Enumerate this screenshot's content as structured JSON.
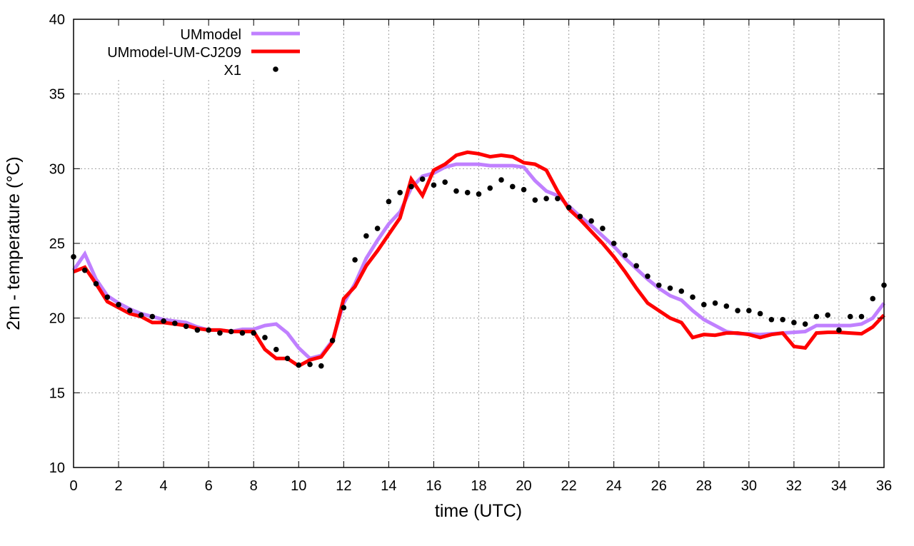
{
  "chart_data": {
    "type": "line",
    "title": "",
    "xlabel": "time (UTC)",
    "ylabel": "2m - temperature (°C)",
    "xlim": [
      0,
      36
    ],
    "ylim": [
      10,
      40
    ],
    "xticks": [
      0,
      2,
      4,
      6,
      8,
      10,
      12,
      14,
      16,
      18,
      20,
      22,
      24,
      26,
      28,
      30,
      32,
      34,
      36
    ],
    "yticks": [
      10,
      15,
      20,
      25,
      30,
      35,
      40
    ],
    "grid": true,
    "legend_position": "top-left",
    "x": [
      0,
      0.5,
      1,
      1.5,
      2,
      2.5,
      3,
      3.5,
      4,
      4.5,
      5,
      5.5,
      6,
      6.5,
      7,
      7.5,
      8,
      8.5,
      9,
      9.5,
      10,
      10.5,
      11,
      11.5,
      12,
      12.5,
      13,
      13.5,
      14,
      14.5,
      15,
      15.5,
      16,
      16.5,
      17,
      17.5,
      18,
      18.5,
      19,
      19.5,
      20,
      20.5,
      21,
      21.5,
      22,
      22.5,
      23,
      23.5,
      24,
      24.5,
      25,
      25.5,
      26,
      26.5,
      27,
      27.5,
      28,
      28.5,
      29,
      29.5,
      30,
      30.5,
      31,
      31.5,
      32,
      32.5,
      33,
      33.5,
      34,
      34.5,
      35,
      35.5,
      36
    ],
    "series": [
      {
        "name": "UMmodel",
        "style": "line",
        "color": "#c080ff",
        "values": [
          23.2,
          24.3,
          22.6,
          21.5,
          21.0,
          20.6,
          20.3,
          20.1,
          19.9,
          19.8,
          19.7,
          19.4,
          19.2,
          19.2,
          19.1,
          19.25,
          19.25,
          19.5,
          19.6,
          19.0,
          18.0,
          17.3,
          17.5,
          18.5,
          21.0,
          22.3,
          24.0,
          25.2,
          26.3,
          27.1,
          28.7,
          29.5,
          29.7,
          30.1,
          30.3,
          30.3,
          30.3,
          30.2,
          30.2,
          30.2,
          30.1,
          29.2,
          28.5,
          28.2,
          27.5,
          26.8,
          26.2,
          25.5,
          24.8,
          24.0,
          23.3,
          22.6,
          22.0,
          21.5,
          21.2,
          20.5,
          19.9,
          19.5,
          19.1,
          18.95,
          18.95,
          18.9,
          18.95,
          19.0,
          19.05,
          19.1,
          19.5,
          19.5,
          19.5,
          19.5,
          19.6,
          20.0,
          21.0
        ]
      },
      {
        "name": "UMmodel-UM-CJ209",
        "style": "line",
        "color": "#ff0000",
        "values": [
          23.1,
          23.4,
          22.3,
          21.1,
          20.7,
          20.3,
          20.1,
          19.7,
          19.7,
          19.6,
          19.5,
          19.3,
          19.2,
          19.2,
          19.1,
          19.1,
          19.1,
          17.9,
          17.3,
          17.3,
          16.8,
          17.2,
          17.4,
          18.4,
          21.3,
          22.1,
          23.5,
          24.5,
          25.6,
          26.7,
          29.3,
          28.2,
          29.9,
          30.3,
          30.9,
          31.1,
          31.0,
          30.8,
          30.9,
          30.8,
          30.4,
          30.3,
          29.9,
          28.5,
          27.3,
          26.6,
          25.8,
          25.0,
          24.1,
          23.1,
          22.0,
          21.0,
          20.5,
          20.0,
          19.7,
          18.7,
          18.9,
          18.85,
          19.0,
          19.0,
          18.9,
          18.7,
          18.9,
          19.0,
          18.1,
          18.0,
          19.0,
          19.05,
          19.05,
          19.0,
          18.95,
          19.4,
          20.2
        ]
      },
      {
        "name": "X1",
        "style": "points",
        "color": "#000000",
        "values": [
          24.1,
          23.2,
          22.3,
          21.4,
          20.9,
          20.5,
          20.2,
          20.1,
          19.8,
          19.65,
          19.45,
          19.2,
          19.2,
          19.0,
          19.1,
          19.0,
          19.0,
          18.7,
          17.9,
          17.3,
          16.85,
          16.9,
          16.8,
          18.5,
          20.7,
          23.9,
          25.5,
          26.0,
          27.8,
          28.4,
          28.8,
          29.3,
          28.9,
          29.1,
          28.5,
          28.4,
          28.3,
          28.7,
          29.25,
          28.8,
          28.6,
          27.9,
          28.0,
          28.0,
          27.4,
          26.8,
          26.5,
          26.0,
          25.0,
          24.2,
          23.5,
          22.8,
          22.2,
          22.0,
          21.8,
          21.4,
          20.9,
          21.0,
          20.8,
          20.5,
          20.5,
          20.3,
          19.9,
          19.9,
          19.7,
          19.6,
          20.1,
          20.2,
          19.2,
          20.1,
          20.1,
          21.3,
          22.2
        ]
      }
    ]
  }
}
